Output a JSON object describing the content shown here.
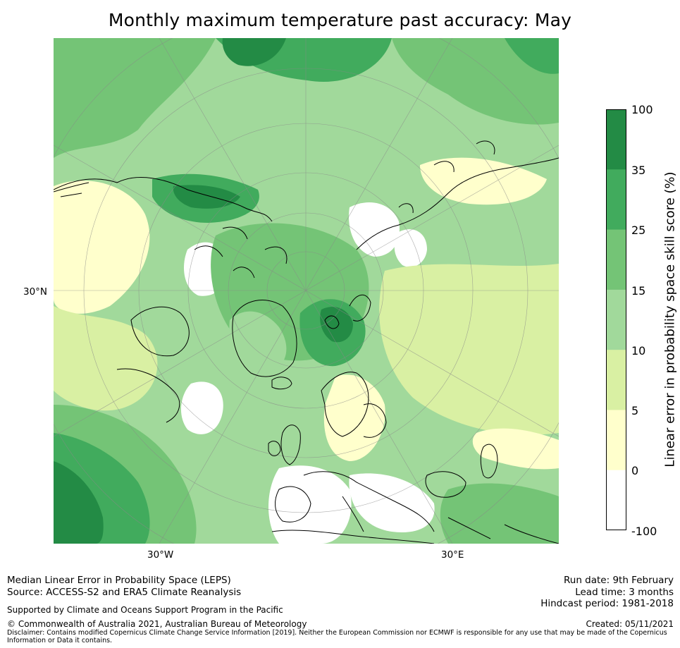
{
  "title": "Monthly maximum temperature past accuracy: May",
  "map": {
    "projection": "north polar stereographic",
    "lat_label": "30°N",
    "lon_labels": [
      "30°W",
      "30°E"
    ],
    "colors": {
      "band_100": "#238b45",
      "band_35": "#41ab5d",
      "band_25": "#74c476",
      "band_15": "#a1d99b",
      "band_10": "#d9f0a3",
      "band_5": "#ffffcc",
      "band_0": "#ffffff",
      "coast": "#000000",
      "grid": "#888888"
    }
  },
  "colorbar": {
    "label": "Linear error in probability space skill score (%)",
    "ticks": [
      "100",
      "35",
      "25",
      "15",
      "10",
      "5",
      "0",
      "-100"
    ],
    "colors": [
      "#238b45",
      "#41ab5d",
      "#74c476",
      "#a1d99b",
      "#d9f0a3",
      "#ffffcc",
      "#ffffff"
    ]
  },
  "footer": {
    "line1": "Median Linear Error in Probability Space (LEPS)",
    "line2": "Source: ACCESS-S2 and ERA5 Climate Reanalysis",
    "supported": "Supported by Climate and Oceans Support Program in the Pacific",
    "copyright": "© Commonwealth of Australia 2021, Australian Bureau of Meteorology",
    "disclaimer1": "Disclaimer: Contains modified Copernicus Climate Change Service Information [2019]. Neither the European Commission nor ECMWF is responsible for any use that may be made of the Copernicus",
    "disclaimer2": "Information or Data it contains.",
    "run_date": "Run date: 9th February",
    "lead_time": "Lead time: 3 months",
    "hindcast": "Hindcast period: 1981-2018",
    "created": "Created: 05/11/2021"
  }
}
